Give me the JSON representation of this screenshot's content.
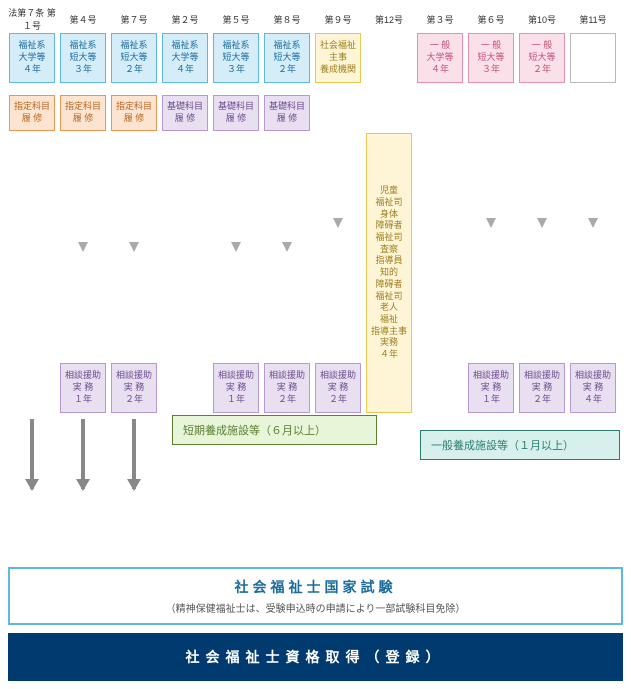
{
  "headers": [
    "法第７条\n第１号",
    "第４号",
    "第７号",
    "第２号",
    "第５号",
    "第８号",
    "第９号",
    "第12号",
    "第３号",
    "第６号",
    "第10号",
    "第11号"
  ],
  "cols": [
    {
      "blue": "福祉系\n大学等\n４年",
      "orange": "指定科目\n履 修",
      "darrow": true
    },
    {
      "blue": "福祉系\n短大等\n３年",
      "orange": "指定科目\n履 修",
      "arrow": true,
      "purple": "相談援助\n実 務\n１年",
      "darrow": true
    },
    {
      "blue": "福祉系\n短大等\n２年",
      "orange": "指定科目\n履 修",
      "arrow": true,
      "purple": "相談援助\n実 務\n２年",
      "darrow": true
    },
    {
      "blue": "福祉系\n大学等\n４年",
      "purple2": "基礎科目\n履 修"
    },
    {
      "blue": "福祉系\n短大等\n３年",
      "purple2": "基礎科目\n履 修",
      "arrow": true,
      "purple": "相談援助\n実 務\n１年"
    },
    {
      "blue": "福祉系\n短大等\n２年",
      "purple2": "基礎科目\n履 修",
      "arrow": true,
      "purple": "相談援助\n実 務\n２年"
    },
    {
      "yellow": "社会福祉\n主事\n養成機関",
      "arrow": true,
      "purple": "相談援助\n実 務\n２年"
    },
    {
      "yellow2": "児童\n福祉司\n\n身体\n障碍者\n福祉司\n\n査察\n指導員\n\n知的\n障碍者\n福祉司\n\n老人\n福祉\n指導主事\n\n実務\n４年"
    },
    {
      "pink": "一 般\n大学等\n４年"
    },
    {
      "pink": "一 般\n短大等\n３年",
      "arrow": true,
      "purple": "相談援助\n実 務\n１年"
    },
    {
      "pink": "一 般\n短大等\n２年",
      "arrow": true,
      "purple": "相談援助\n実 務\n２年"
    },
    {
      "outline": true,
      "arrow": true,
      "purple": "相談援助\n実 務\n４年"
    }
  ],
  "mid1": "短期養成施設等（６月以上）",
  "mid2": "一般養成施設等（１月以上）",
  "exam_t": "社会福祉士国家試験",
  "exam_s": "（精神保健福祉士は、受験申込時の申請により一部試験科目免除）",
  "final": "社会福祉士資格取得（登録）"
}
